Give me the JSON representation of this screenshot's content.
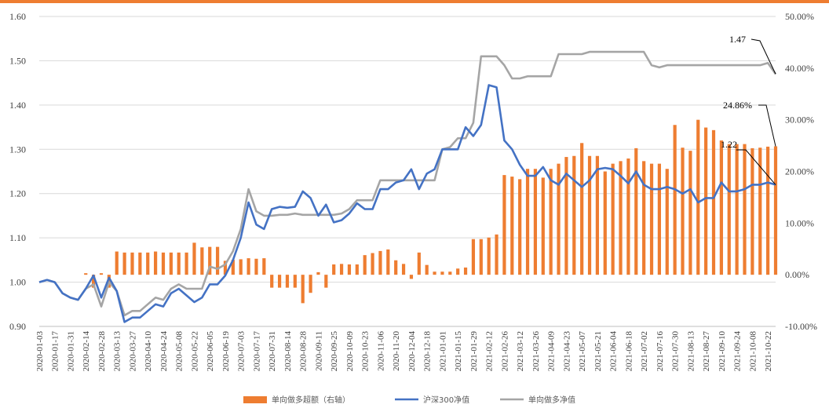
{
  "chart_data": {
    "type": "bar+line",
    "title": "",
    "x": [
      "2020-01-03",
      "2020-01-10",
      "2020-01-17",
      "2020-01-24",
      "2020-01-31",
      "2020-02-07",
      "2020-02-14",
      "2020-02-21",
      "2020-02-28",
      "2020-03-06",
      "2020-03-13",
      "2020-03-20",
      "2020-03-27",
      "2020-04-03",
      "2020-04-10",
      "2020-04-17",
      "2020-04-24",
      "2020-05-01",
      "2020-05-08",
      "2020-05-15",
      "2020-05-22",
      "2020-05-29",
      "2020-06-05",
      "2020-06-12",
      "2020-06-19",
      "2020-06-26",
      "2020-07-03",
      "2020-07-10",
      "2020-07-17",
      "2020-07-24",
      "2020-07-31",
      "2020-08-07",
      "2020-08-14",
      "2020-08-21",
      "2020-08-28",
      "2020-09-04",
      "2020-09-11",
      "2020-09-18",
      "2020-09-25",
      "2020-10-02",
      "2020-10-09",
      "2020-10-16",
      "2020-10-23",
      "2020-10-30",
      "2020-11-06",
      "2020-11-13",
      "2020-11-20",
      "2020-11-27",
      "2020-12-04",
      "2020-12-11",
      "2020-12-18",
      "2020-12-25",
      "2021-01-01",
      "2021-01-08",
      "2021-01-15",
      "2021-01-22",
      "2021-01-29",
      "2021-02-05",
      "2021-02-12",
      "2021-02-19",
      "2021-02-26",
      "2021-03-05",
      "2021-03-12",
      "2021-03-19",
      "2021-03-26",
      "2021-04-02",
      "2021-04-09",
      "2021-04-16",
      "2021-04-23",
      "2021-04-30",
      "2021-05-07",
      "2021-05-14",
      "2021-05-21",
      "2021-05-28",
      "2021-06-04",
      "2021-06-11",
      "2021-06-18",
      "2021-06-25",
      "2021-07-02",
      "2021-07-09",
      "2021-07-16",
      "2021-07-23",
      "2021-07-30",
      "2021-08-06",
      "2021-08-13",
      "2021-08-20",
      "2021-08-27",
      "2021-09-03",
      "2021-09-10",
      "2021-09-17",
      "2021-09-24",
      "2021-10-01",
      "2021-10-08",
      "2021-10-15",
      "2021-10-22",
      "2021-10-29"
    ],
    "x_tick_labels": [
      "2020-01-03",
      "2020-01-17",
      "2020-01-31",
      "2020-02-14",
      "2020-02-28",
      "2020-03-13",
      "2020-03-27",
      "2020-04-10",
      "2020-04-24",
      "2020-05-08",
      "2020-05-22",
      "2020-06-05",
      "2020-06-19",
      "2020-07-03",
      "2020-07-17",
      "2020-07-31",
      "2020-08-14",
      "2020-08-28",
      "2020-09-11",
      "2020-09-25",
      "2020-10-09",
      "2020-10-23",
      "2020-11-06",
      "2020-11-20",
      "2020-12-04",
      "2020-12-18",
      "2021-01-01",
      "2021-01-15",
      "2021-01-29",
      "2021-02-12",
      "2021-02-26",
      "2021-03-12",
      "2021-03-26",
      "2021-04-09",
      "2021-04-23",
      "2021-05-07",
      "2021-05-21",
      "2021-06-04",
      "2021-06-18",
      "2021-07-02",
      "2021-07-16",
      "2021-07-30",
      "2021-08-13",
      "2021-08-27",
      "2021-09-10",
      "2021-09-24",
      "2021-10-08",
      "2021-10-22"
    ],
    "y_left": {
      "min": 0.9,
      "max": 1.6,
      "ticks": [
        "0.90",
        "1.00",
        "1.10",
        "1.20",
        "1.30",
        "1.40",
        "1.50",
        "1.60"
      ]
    },
    "y_right": {
      "min": -10,
      "max": 50,
      "ticks": [
        "-10.00%",
        "0.00%",
        "10.00%",
        "20.00%",
        "30.00%",
        "40.00%",
        "50.00%"
      ]
    },
    "grid": "horizontal",
    "legend_position": "bottom",
    "series": [
      {
        "name": "单向做多超额（右轴）",
        "kind": "bar",
        "axis": "right",
        "color": "#ee7d31",
        "values": [
          null,
          null,
          null,
          null,
          null,
          null,
          0.3,
          -2.5,
          0.3,
          -2.5,
          4.5,
          4.3,
          4.3,
          4.3,
          4.3,
          4.5,
          4.3,
          4.3,
          4.3,
          4.3,
          6.2,
          5.3,
          5.4,
          5.4,
          2.7,
          2.9,
          3.0,
          3.2,
          3.1,
          3.2,
          -2.5,
          -2.5,
          -2.5,
          -2.5,
          -5.5,
          -3.5,
          0.5,
          -2.5,
          2.0,
          2.1,
          2.0,
          2.0,
          3.8,
          4.2,
          4.6,
          4.9,
          2.8,
          2.1,
          -0.8,
          4.3,
          1.9,
          0.6,
          0.6,
          0.6,
          1.2,
          1.4,
          6.9,
          6.9,
          7.2,
          7.8,
          19.3,
          19.0,
          18.5,
          20.5,
          20.5,
          18.8,
          20.5,
          21.5,
          22.8,
          23.0,
          25.5,
          23.0,
          23.0,
          20.0,
          21.5,
          22.0,
          22.5,
          24.5,
          22.0,
          21.5,
          21.5,
          20.5,
          29.0,
          24.6,
          24.0,
          30.0,
          28.5,
          28.0,
          26.0,
          25.3,
          25.3,
          25.3,
          24.5,
          24.6,
          24.8,
          24.86
        ]
      },
      {
        "name": "沪深300净值",
        "kind": "line",
        "axis": "left",
        "color": "#4472c4",
        "values": [
          1.0,
          1.005,
          1.0,
          0.975,
          0.965,
          0.96,
          0.985,
          1.015,
          0.965,
          1.01,
          0.98,
          0.91,
          0.92,
          0.92,
          0.935,
          0.95,
          0.945,
          0.975,
          0.985,
          0.97,
          0.955,
          0.965,
          0.995,
          0.995,
          1.015,
          1.05,
          1.1,
          1.18,
          1.13,
          1.12,
          1.165,
          1.17,
          1.168,
          1.17,
          1.205,
          1.19,
          1.15,
          1.175,
          1.135,
          1.14,
          1.155,
          1.178,
          1.165,
          1.165,
          1.21,
          1.21,
          1.225,
          1.23,
          1.255,
          1.21,
          1.245,
          1.255,
          1.3,
          1.3,
          1.3,
          1.35,
          1.33,
          1.355,
          1.445,
          1.44,
          1.32,
          1.3,
          1.265,
          1.24,
          1.24,
          1.26,
          1.23,
          1.22,
          1.245,
          1.23,
          1.215,
          1.23,
          1.255,
          1.258,
          1.255,
          1.24,
          1.223,
          1.25,
          1.22,
          1.21,
          1.21,
          1.215,
          1.21,
          1.2,
          1.21,
          1.18,
          1.19,
          1.19,
          1.225,
          1.205,
          1.205,
          1.21,
          1.22,
          1.22,
          1.225,
          1.22
        ]
      },
      {
        "name": "单向做多净值",
        "kind": "line",
        "axis": "left",
        "color": "#a5a5a5",
        "values": [
          1.0,
          1.005,
          1.0,
          0.975,
          0.965,
          0.96,
          0.985,
          0.995,
          0.945,
          1.0,
          0.98,
          0.925,
          0.935,
          0.935,
          0.95,
          0.965,
          0.96,
          0.985,
          0.995,
          0.985,
          0.985,
          0.985,
          1.035,
          1.03,
          1.04,
          1.07,
          1.12,
          1.21,
          1.16,
          1.15,
          1.15,
          1.152,
          1.152,
          1.155,
          1.152,
          1.152,
          1.152,
          1.152,
          1.152,
          1.155,
          1.165,
          1.185,
          1.185,
          1.185,
          1.23,
          1.23,
          1.23,
          1.23,
          1.23,
          1.23,
          1.23,
          1.23,
          1.3,
          1.305,
          1.325,
          1.325,
          1.36,
          1.51,
          1.51,
          1.51,
          1.49,
          1.46,
          1.46,
          1.465,
          1.465,
          1.465,
          1.465,
          1.515,
          1.515,
          1.515,
          1.515,
          1.52,
          1.52,
          1.52,
          1.52,
          1.52,
          1.52,
          1.52,
          1.52,
          1.49,
          1.485,
          1.49,
          1.49,
          1.49,
          1.49,
          1.49,
          1.49,
          1.49,
          1.49,
          1.49,
          1.49,
          1.49,
          1.49,
          1.49,
          1.495,
          1.47
        ]
      }
    ],
    "annotations": [
      {
        "text": "1.47",
        "series": 2,
        "index": 95
      },
      {
        "text": "24.86%",
        "series": 0,
        "index": 95
      },
      {
        "text": "1.22",
        "series": 1,
        "index": 95
      }
    ]
  },
  "colors": {
    "accent": "#ee7d31",
    "grid": "#d9d9d9"
  }
}
